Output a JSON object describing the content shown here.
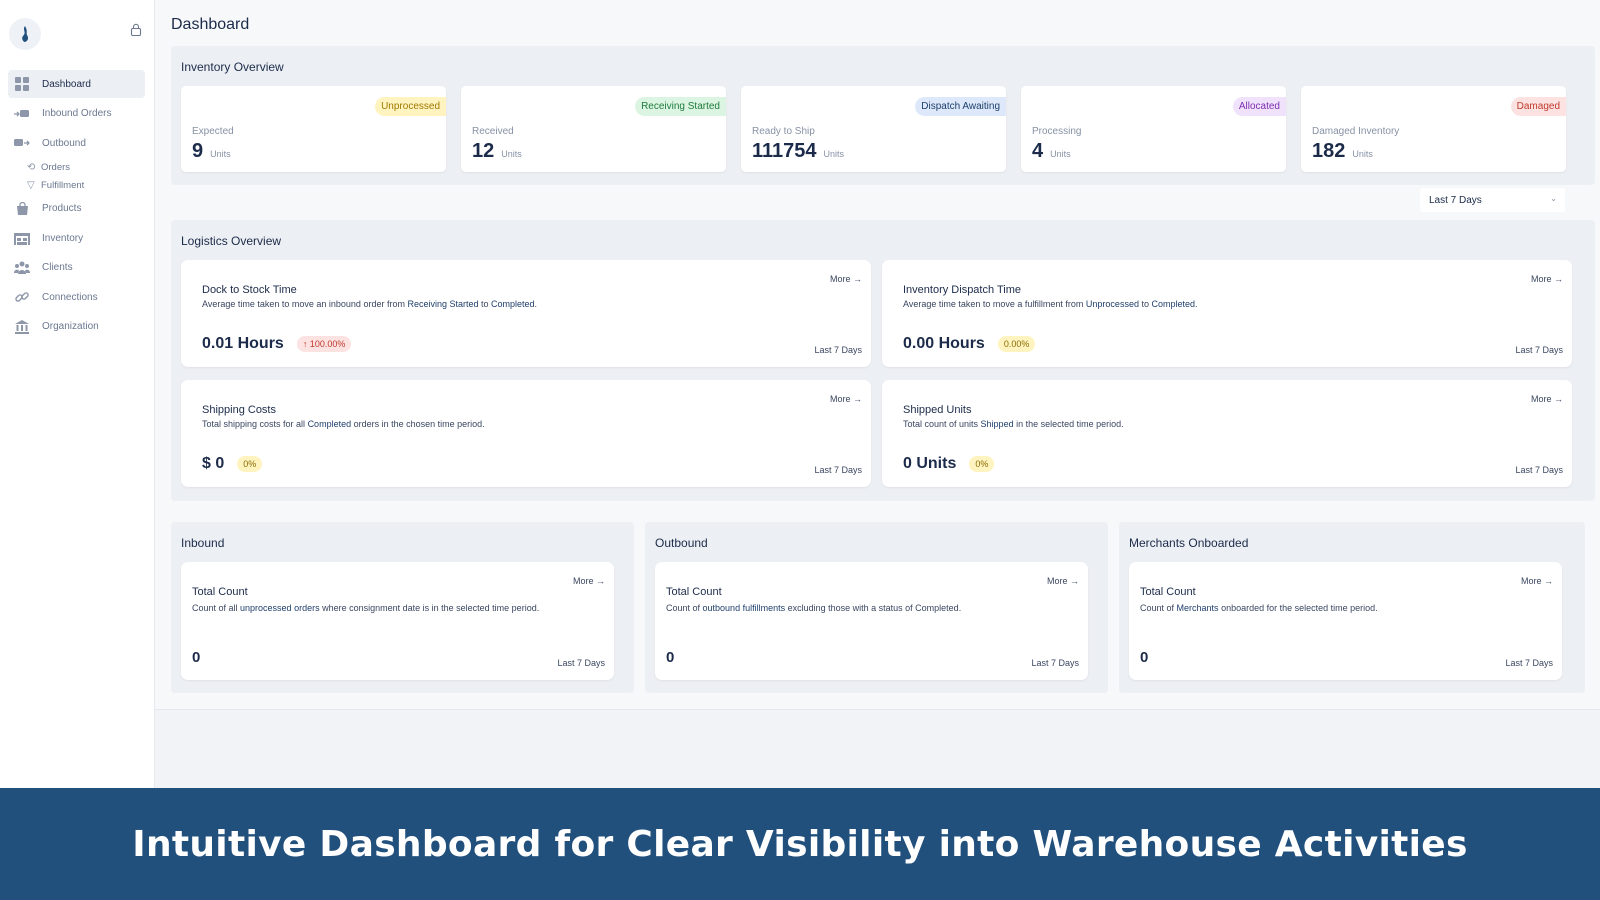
{
  "sidebar": {
    "items": [
      {
        "label": "Dashboard",
        "icon": "grid-icon"
      },
      {
        "label": "Inbound Orders",
        "icon": "inbound-truck-icon"
      },
      {
        "label": "Outbound",
        "icon": "outbound-truck-icon"
      },
      {
        "label": "Products",
        "icon": "bag-icon"
      },
      {
        "label": "Inventory",
        "icon": "warehouse-icon"
      },
      {
        "label": "Clients",
        "icon": "users-icon"
      },
      {
        "label": "Connections",
        "icon": "link-icon"
      },
      {
        "label": "Organization",
        "icon": "bank-icon"
      }
    ],
    "sub_items": [
      {
        "label": "Orders",
        "icon": "refresh-icon"
      },
      {
        "label": "Fulfillment",
        "icon": "filter-icon"
      }
    ]
  },
  "page": {
    "title": "Dashboard"
  },
  "inventory": {
    "title": "Inventory Overview",
    "cards": [
      {
        "badge": "Unprocessed",
        "label": "Expected",
        "value": "9",
        "unit": "Units",
        "badge_bg": "#fff3bf",
        "badge_fg": "#a07a00"
      },
      {
        "badge": "Receiving Started",
        "label": "Received",
        "value": "12",
        "unit": "Units",
        "badge_bg": "#dcf5e3",
        "badge_fg": "#1f7a3d"
      },
      {
        "badge": "Dispatch Awaiting",
        "label": "Ready to Ship",
        "value": "111754",
        "unit": "Units",
        "badge_bg": "#dde9fb",
        "badge_fg": "#1f3f6b"
      },
      {
        "badge": "Allocated",
        "label": "Processing",
        "value": "4",
        "unit": "Units",
        "badge_bg": "#f1e2fb",
        "badge_fg": "#7b2fb0"
      },
      {
        "badge": "Damaged",
        "label": "Damaged Inventory",
        "value": "182",
        "unit": "Units",
        "badge_bg": "#fde2e2",
        "badge_fg": "#c0392b"
      }
    ]
  },
  "range_select": {
    "value": "Last 7 Days"
  },
  "logistics": {
    "title": "Logistics Overview",
    "cards": [
      {
        "more": "More",
        "title": "Dock to Stock Time",
        "desc_pre": "Average time taken to move an inbound order from ",
        "desc_hl1": "Receiving Started",
        "desc_mid": " to ",
        "desc_hl2": "Completed",
        "desc_post": ".",
        "value": "0.01 Hours",
        "delta": "100.00%",
        "range": "Last 7 Days"
      },
      {
        "more": "More",
        "title": "Inventory Dispatch Time",
        "desc_pre": "Average time taken to move a fulfillment from ",
        "desc_hl1": "Unprocessed",
        "desc_mid": " to ",
        "desc_hl2": "Completed",
        "desc_post": ".",
        "value": "0.00 Hours",
        "delta": "0.00%",
        "range": "Last 7 Days"
      },
      {
        "more": "More",
        "title": "Shipping Costs",
        "desc_pre": "Total shipping costs for all ",
        "desc_hl1": "Completed",
        "desc_post": " orders in the chosen time period.",
        "value": "$ 0",
        "delta": "0%",
        "range": "Last 7 Days"
      },
      {
        "more": "More",
        "title": "Shipped Units",
        "desc_pre": "Total count of units ",
        "desc_hl1": "Shipped",
        "desc_post": " in the selected time period.",
        "value": "0 Units",
        "delta": "0%",
        "range": "Last 7 Days"
      }
    ]
  },
  "sections": [
    {
      "title": "Inbound",
      "more": "More",
      "card_title": "Total Count",
      "desc_pre": "Count of all ",
      "desc_hl": "unprocessed orders",
      "desc_post": " where consignment date is in the selected time period.",
      "value": "0",
      "range": "Last 7 Days"
    },
    {
      "title": "Outbound",
      "more": "More",
      "card_title": "Total Count",
      "desc_pre": "Count of ",
      "desc_hl": "outbound fulfillments",
      "desc_post": " excluding those with a status of Completed.",
      "value": "0",
      "range": "Last 7 Days"
    },
    {
      "title": "Merchants Onboarded",
      "more": "More",
      "card_title": "Total Count",
      "desc_pre": "Count of ",
      "desc_hl": "Merchants",
      "desc_post": " onboarded for the selected time period.",
      "value": "0",
      "range": "Last 7 Days"
    }
  ],
  "banner": {
    "text": "Intuitive Dashboard for Clear Visibility into Warehouse Activities"
  }
}
